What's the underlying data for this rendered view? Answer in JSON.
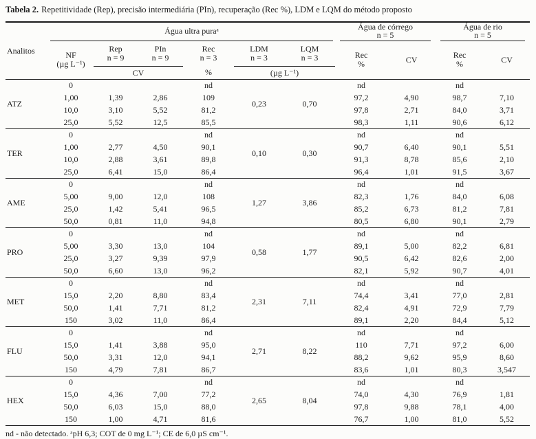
{
  "title": {
    "label": "Tabela 2.",
    "text": "Repetitividade (Rep), precisão intermediária (PIn), recuperação (Rec %), LDM e LQM do método proposto"
  },
  "header": {
    "analytes_col": "Analitos",
    "groups": [
      {
        "line1": "Água ultra puraᵃ",
        "line2": ""
      },
      {
        "line1": "Água de córrego",
        "line2": "n = 5"
      },
      {
        "line1": "Água de rio",
        "line2": "n = 5"
      }
    ],
    "cols": {
      "nf_line1": "NF",
      "nf_line2": "(µg L⁻¹)",
      "rep_line1": "Rep",
      "rep_line2": "n = 9",
      "pin_line1": "PIn",
      "pin_line2": "n = 9",
      "rec_line1": "Rec",
      "rec_line2": "n = 3",
      "rec_line3": "%",
      "ldm_line1": "LDM",
      "ldm_line2": "n = 3",
      "lqm_line1": "LQM",
      "lqm_line2": "n = 3",
      "cv_span": "CV",
      "ug_span": "(µg L⁻¹)",
      "rec_pct_line1": "Rec",
      "rec_pct_line2": "%",
      "cv": "CV"
    }
  },
  "blocks": [
    {
      "analyte": "ATZ",
      "ldm": "0,23",
      "lqm": "0,70",
      "rows": [
        [
          "0",
          "",
          "",
          "nd",
          "nd",
          "",
          "nd",
          ""
        ],
        [
          "1,00",
          "1,39",
          "2,86",
          "109",
          "97,2",
          "4,90",
          "98,7",
          "7,10"
        ],
        [
          "10,0",
          "3,10",
          "5,52",
          "81,2",
          "97,8",
          "2,71",
          "84,0",
          "3,71"
        ],
        [
          "25,0",
          "5,52",
          "12,5",
          "85,5",
          "98,3",
          "1,11",
          "90,6",
          "6,12"
        ]
      ]
    },
    {
      "analyte": "TER",
      "ldm": "0,10",
      "lqm": "0,30",
      "rows": [
        [
          "0",
          "",
          "",
          "nd",
          "nd",
          "",
          "nd",
          ""
        ],
        [
          "1,00",
          "2,77",
          "4,50",
          "90,1",
          "90,7",
          "6,40",
          "90,1",
          "5,51"
        ],
        [
          "10,0",
          "2,88",
          "3,61",
          "89,8",
          "91,3",
          "8,78",
          "85,6",
          "2,10"
        ],
        [
          "25,0",
          "6,41",
          "15,0",
          "86,4",
          "96,4",
          "1,01",
          "91,5",
          "3,67"
        ]
      ]
    },
    {
      "analyte": "AME",
      "ldm": "1,27",
      "lqm": "3,86",
      "rows": [
        [
          "0",
          "",
          "",
          "nd",
          "nd",
          "",
          "nd",
          ""
        ],
        [
          "5,00",
          "9,00",
          "12,0",
          "108",
          "82,3",
          "1,76",
          "84,0",
          "6,08"
        ],
        [
          "25,0",
          "1,42",
          "5,41",
          "96,5",
          "85,2",
          "6,73",
          "81,2",
          "7,81"
        ],
        [
          "50,0",
          "0,81",
          "11,0",
          "94,8",
          "80,5",
          "6,80",
          "90,1",
          "2,79"
        ]
      ]
    },
    {
      "analyte": "PRO",
      "ldm": "0,58",
      "lqm": "1,77",
      "rows": [
        [
          "0",
          "",
          "",
          "nd",
          "nd",
          "",
          "nd",
          ""
        ],
        [
          "5,00",
          "3,30",
          "13,0",
          "104",
          "89,1",
          "5,00",
          "82,2",
          "6,81"
        ],
        [
          "25,0",
          "3,27",
          "9,39",
          "97,9",
          "90,5",
          "6,42",
          "82,6",
          "2,00"
        ],
        [
          "50,0",
          "6,60",
          "13,0",
          "96,2",
          "82,1",
          "5,92",
          "90,7",
          "4,01"
        ]
      ]
    },
    {
      "analyte": "MET",
      "ldm": "2,31",
      "lqm": "7,11",
      "rows": [
        [
          "0",
          "",
          "",
          "nd",
          "nd",
          "",
          "nd",
          ""
        ],
        [
          "15,0",
          "2,20",
          "8,80",
          "83,4",
          "74,4",
          "3,41",
          "77,0",
          "2,81"
        ],
        [
          "50,0",
          "1,41",
          "7,71",
          "81,2",
          "82,4",
          "4,91",
          "72,9",
          "7,79"
        ],
        [
          "150",
          "3,02",
          "11,0",
          "86,4",
          "89,1",
          "2,20",
          "84,4",
          "5,12"
        ]
      ]
    },
    {
      "analyte": "FLU",
      "ldm": "2,71",
      "lqm": "8,22",
      "rows": [
        [
          "0",
          "",
          "",
          "nd",
          "nd",
          "",
          "nd",
          ""
        ],
        [
          "15,0",
          "1,41",
          "3,88",
          "95,0",
          "110",
          "7,71",
          "97,2",
          "6,00"
        ],
        [
          "50,0",
          "3,31",
          "12,0",
          "94,1",
          "88,2",
          "9,62",
          "95,9",
          "8,60"
        ],
        [
          "150",
          "4,79",
          "7,81",
          "86,7",
          "83,6",
          "1,01",
          "80,3",
          "3,547"
        ]
      ]
    },
    {
      "analyte": "HEX",
      "ldm": "2,65",
      "lqm": "8,04",
      "rows": [
        [
          "0",
          "",
          "",
          "nd",
          "nd",
          "",
          "nd",
          ""
        ],
        [
          "15,0",
          "4,36",
          "7,00",
          "77,2",
          "74,0",
          "4,30",
          "76,9",
          "1,81"
        ],
        [
          "50,0",
          "6,03",
          "15,0",
          "88,0",
          "97,8",
          "9,88",
          "78,1",
          "4,00"
        ],
        [
          "150",
          "1,00",
          "4,71",
          "81,6",
          "76,7",
          "1,00",
          "81,0",
          "5,52"
        ]
      ]
    }
  ],
  "footnote": "nd - não detectado. ᵃpH 6,3; COT de 0 mg L⁻¹; CE de 6,0 µS cm⁻¹."
}
